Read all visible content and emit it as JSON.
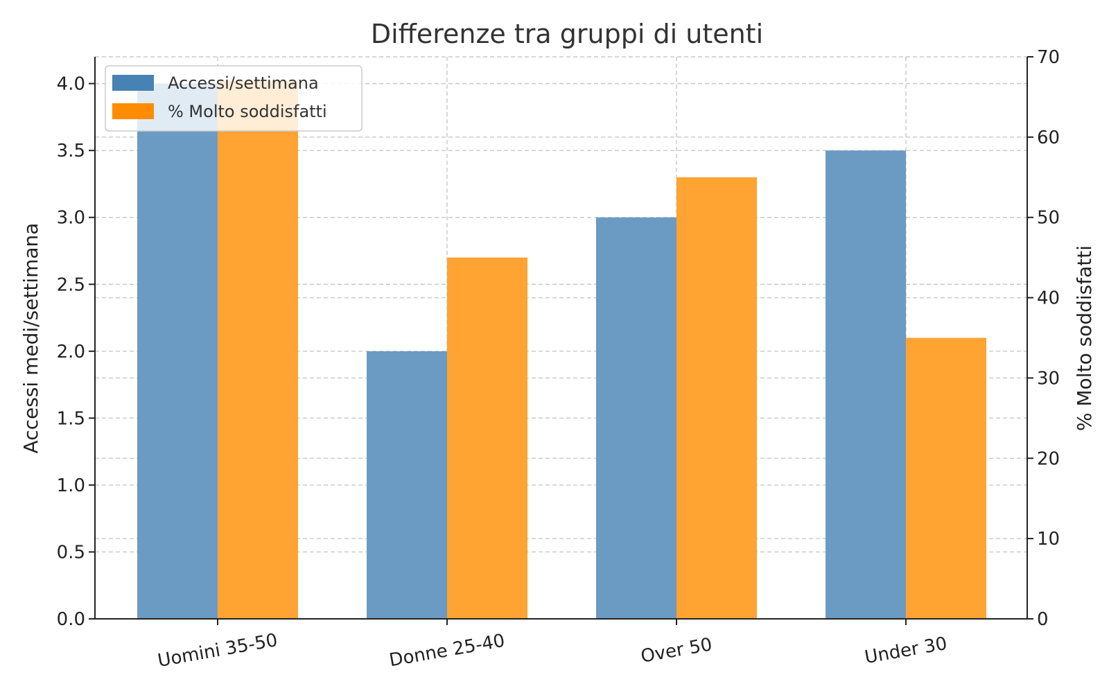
{
  "chart_data": {
    "type": "bar",
    "title": "Differenze tra gruppi di utenti",
    "categories": [
      "Uomini 35-50",
      "Donne 25-40",
      "Over 50",
      "Under 30"
    ],
    "series": [
      {
        "name": "Accessi/settimana",
        "axis": "left",
        "color": "#4682b4",
        "values": [
          4.0,
          2.0,
          3.0,
          3.5
        ]
      },
      {
        "name": "% Molto soddisfatti",
        "axis": "right",
        "color": "#ff8c00",
        "values": [
          67,
          45,
          55,
          35
        ]
      }
    ],
    "ylabel_left": "Accessi medi/settimana",
    "ylabel_right": "% Molto soddisfatti",
    "ylim_left": [
      0,
      4.2
    ],
    "ylim_right": [
      0,
      70
    ],
    "yticks_left": [
      "0.0",
      "0.5",
      "1.0",
      "1.5",
      "2.0",
      "2.5",
      "3.0",
      "3.5",
      "4.0"
    ],
    "yticks_right": [
      "0",
      "10",
      "20",
      "30",
      "40",
      "50",
      "60",
      "70"
    ],
    "grid": true,
    "legend_position": "top-left"
  }
}
